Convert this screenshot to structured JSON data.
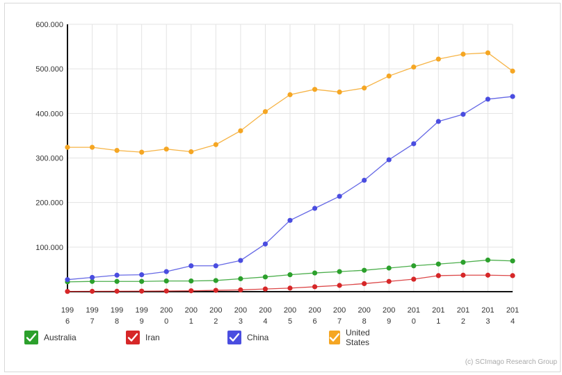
{
  "chart_data": {
    "type": "line",
    "x": [
      "1996",
      "1997",
      "1998",
      "1999",
      "2000",
      "2001",
      "2002",
      "2003",
      "2004",
      "2005",
      "2006",
      "2007",
      "2008",
      "2009",
      "2010",
      "2011",
      "2012",
      "2013",
      "2014"
    ],
    "xtick_lines": [
      [
        "199",
        "6"
      ],
      [
        "199",
        "7"
      ],
      [
        "199",
        "8"
      ],
      [
        "199",
        "9"
      ],
      [
        "200",
        "0"
      ],
      [
        "200",
        "1"
      ],
      [
        "200",
        "2"
      ],
      [
        "200",
        "3"
      ],
      [
        "200",
        "4"
      ],
      [
        "200",
        "5"
      ],
      [
        "200",
        "6"
      ],
      [
        "200",
        "7"
      ],
      [
        "200",
        "8"
      ],
      [
        "200",
        "9"
      ],
      [
        "201",
        "0"
      ],
      [
        "201",
        "1"
      ],
      [
        "201",
        "2"
      ],
      [
        "201",
        "3"
      ],
      [
        "201",
        "4"
      ]
    ],
    "yticks": [
      {
        "value": 100000,
        "label": "100.000"
      },
      {
        "value": 200000,
        "label": "200.000"
      },
      {
        "value": 300000,
        "label": "300.000"
      },
      {
        "value": 400000,
        "label": "400.000"
      },
      {
        "value": 500000,
        "label": "500.000"
      },
      {
        "value": 600000,
        "label": "600.000"
      }
    ],
    "ylim": [
      0,
      600000
    ],
    "grid": true,
    "legend_position": "bottom-left",
    "series": [
      {
        "name": "Australia",
        "color": "#2ca02c",
        "values": [
          22000,
          23000,
          23000,
          23000,
          24000,
          24000,
          25000,
          29000,
          33000,
          38000,
          42000,
          45000,
          48000,
          53000,
          58000,
          62000,
          66000,
          71000,
          69000
        ]
      },
      {
        "name": "Iran",
        "color": "#d62728",
        "values": [
          500,
          800,
          1000,
          1200,
          1500,
          2000,
          3000,
          4000,
          6000,
          8000,
          11000,
          14000,
          18000,
          23000,
          28000,
          36000,
          37000,
          37000,
          36000
        ]
      },
      {
        "name": "China",
        "color": "#4a4de0",
        "values": [
          27000,
          32000,
          37000,
          38000,
          45000,
          58000,
          58000,
          70000,
          107000,
          160000,
          187000,
          214000,
          250000,
          296000,
          332000,
          382000,
          398000,
          432000,
          438000
        ]
      },
      {
        "name": "United States",
        "color": "#f5a623",
        "values": [
          324000,
          324000,
          317000,
          313000,
          320000,
          314000,
          330000,
          361000,
          404000,
          442000,
          454000,
          448000,
          457000,
          484000,
          504000,
          522000,
          533000,
          536000,
          495000
        ]
      }
    ]
  },
  "credit": "(c) SCImago Research Group"
}
